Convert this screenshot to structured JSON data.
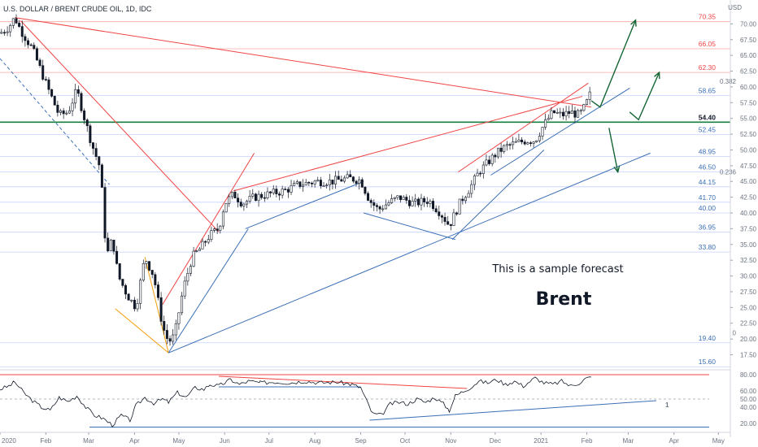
{
  "header": {
    "symbol_title": "U.S. DOLLAR / BRENT CRUDE OIL, 1D, IDC",
    "currency": "USD"
  },
  "chart_data": [
    {
      "type": "line",
      "y_axis_side": "right",
      "ylim": [
        15.5,
        72.5
      ],
      "y_ticks": [
        17.5,
        20.0,
        22.5,
        25.0,
        27.5,
        30.0,
        32.5,
        35.0,
        37.5,
        40.0,
        42.5,
        45.0,
        47.5,
        50.0,
        52.5,
        55.0,
        57.5,
        60.0,
        62.5,
        65.0,
        67.5,
        70.0
      ],
      "price_levels": [
        {
          "value": 70.35,
          "label": "70.35",
          "color": "#ef4444"
        },
        {
          "value": 66.05,
          "label": "66.05",
          "color": "#ef4444"
        },
        {
          "value": 62.3,
          "label": "62.30",
          "color": "#ef4444"
        },
        {
          "value": 58.65,
          "label": "58.65",
          "color": "#3b6fb6"
        },
        {
          "value": 54.4,
          "label": "54.40",
          "color": "#111827"
        },
        {
          "value": 52.45,
          "label": "52.45",
          "color": "#3b6fb6"
        },
        {
          "value": 48.95,
          "label": "48.95",
          "color": "#3b6fb6"
        },
        {
          "value": 46.5,
          "label": "46.50",
          "color": "#3b6fb6"
        },
        {
          "value": 44.15,
          "label": "44.15",
          "color": "#3b6fb6"
        },
        {
          "value": 41.7,
          "label": "41.70",
          "color": "#3b6fb6"
        },
        {
          "value": 40.0,
          "label": "40.00",
          "color": "#3b6fb6"
        },
        {
          "value": 36.95,
          "label": "36.95",
          "color": "#3b6fb6"
        },
        {
          "value": 33.8,
          "label": "33.80",
          "color": "#3b6fb6"
        },
        {
          "value": 19.4,
          "label": "19.40",
          "color": "#3b6fb6"
        },
        {
          "value": 15.6,
          "label": "15.60",
          "color": "#3b6fb6"
        }
      ],
      "fib_labels": [
        {
          "value": 60.9,
          "label": "0.382"
        },
        {
          "value": 46.5,
          "label": "0.236"
        },
        {
          "value": 21.0,
          "label": "0"
        }
      ],
      "x_ticks": [
        {
          "day": 0,
          "label": "2020"
        },
        {
          "day": 31,
          "label": "Feb"
        },
        {
          "day": 60,
          "label": "Mar"
        },
        {
          "day": 91,
          "label": "Apr"
        },
        {
          "day": 121,
          "label": "May"
        },
        {
          "day": 152,
          "label": "Jun"
        },
        {
          "day": 182,
          "label": "Jul"
        },
        {
          "day": 213,
          "label": "Aug"
        },
        {
          "day": 244,
          "label": "Sep"
        },
        {
          "day": 274,
          "label": "Oct"
        },
        {
          "day": 305,
          "label": "Nov"
        },
        {
          "day": 335,
          "label": "Dec"
        },
        {
          "day": 366,
          "label": "2021"
        },
        {
          "day": 397,
          "label": "Feb"
        },
        {
          "day": 425,
          "label": "Mar"
        },
        {
          "day": 456,
          "label": "Apr"
        },
        {
          "day": 486,
          "label": "May"
        }
      ],
      "x_range_days": [
        0,
        493
      ],
      "price_path": [
        [
          0,
          68.5
        ],
        [
          6,
          69.5
        ],
        [
          10,
          71.0
        ],
        [
          14,
          69.0
        ],
        [
          22,
          66.0
        ],
        [
          32,
          60.0
        ],
        [
          40,
          55.5
        ],
        [
          46,
          56.0
        ],
        [
          52,
          59.5
        ],
        [
          56,
          56.0
        ],
        [
          62,
          51.0
        ],
        [
          68,
          47.0
        ],
        [
          72,
          33.0
        ],
        [
          76,
          36.0
        ],
        [
          80,
          30.0
        ],
        [
          86,
          27.0
        ],
        [
          92,
          25.0
        ],
        [
          98,
          33.0
        ],
        [
          104,
          30.0
        ],
        [
          110,
          22.0
        ],
        [
          114,
          19.5
        ],
        [
          118,
          20.5
        ],
        [
          124,
          28.0
        ],
        [
          130,
          33.0
        ],
        [
          136,
          34.5
        ],
        [
          142,
          36.5
        ],
        [
          148,
          37.5
        ],
        [
          152,
          41.5
        ],
        [
          158,
          43.0
        ],
        [
          164,
          41.5
        ],
        [
          172,
          42.5
        ],
        [
          182,
          43.0
        ],
        [
          192,
          43.5
        ],
        [
          202,
          44.5
        ],
        [
          214,
          45.0
        ],
        [
          224,
          45.0
        ],
        [
          236,
          45.5
        ],
        [
          244,
          45.2
        ],
        [
          250,
          42.0
        ],
        [
          256,
          40.5
        ],
        [
          262,
          41.5
        ],
        [
          270,
          42.5
        ],
        [
          280,
          41.5
        ],
        [
          290,
          42.0
        ],
        [
          298,
          40.0
        ],
        [
          304,
          38.0
        ],
        [
          308,
          40.0
        ],
        [
          312,
          42.0
        ],
        [
          318,
          44.0
        ],
        [
          324,
          46.5
        ],
        [
          330,
          48.0
        ],
        [
          336,
          49.5
        ],
        [
          342,
          50.5
        ],
        [
          348,
          51.0
        ],
        [
          356,
          51.5
        ],
        [
          362,
          51.5
        ],
        [
          368,
          54.0
        ],
        [
          374,
          56.0
        ],
        [
          380,
          55.5
        ],
        [
          386,
          56.0
        ],
        [
          392,
          55.5
        ],
        [
          396,
          57.0
        ],
        [
          400,
          59.3
        ]
      ],
      "trendlines": [
        {
          "color": "#ef4444",
          "points": [
            [
              10,
              71.0
            ],
            [
              400,
              56.8
            ]
          ]
        },
        {
          "color": "#ef4444",
          "points": [
            [
              14,
              70.5
            ],
            [
              148,
              37.0
            ]
          ]
        },
        {
          "color": "#ef4444",
          "points": [
            [
              110,
              25.5
            ],
            [
              172,
              49.5
            ]
          ]
        },
        {
          "color": "#ef4444",
          "points": [
            [
              158,
              43.5
            ],
            [
              394,
              58.5
            ]
          ]
        },
        {
          "color": "#ef4444",
          "points": [
            [
              310,
              46.5
            ],
            [
              398,
              60.6
            ]
          ]
        },
        {
          "color": "#f59e0b",
          "points": [
            [
              78,
              24.8
            ],
            [
              114,
              17.8
            ]
          ]
        },
        {
          "color": "#f59e0b",
          "points": [
            [
              98,
              33.0
            ],
            [
              114,
              17.8
            ]
          ]
        },
        {
          "color": "#3b6fb6",
          "points": [
            [
              114,
              17.8
            ],
            [
              168,
              37.5
            ]
          ]
        },
        {
          "color": "#3b6fb6",
          "points": [
            [
              114,
              17.8
            ],
            [
              440,
              49.5
            ]
          ]
        },
        {
          "color": "#3b6fb6",
          "points": [
            [
              166,
              37.5
            ],
            [
              246,
              45.0
            ]
          ]
        },
        {
          "color": "#3b6fb6",
          "points": [
            [
              246,
              40.0
            ],
            [
              308,
              35.8
            ]
          ]
        },
        {
          "color": "#3b6fb6",
          "points": [
            [
              306,
              35.8
            ],
            [
              368,
              50.0
            ]
          ]
        },
        {
          "color": "#3b6fb6",
          "points": [
            [
              332,
              46.0
            ],
            [
              426,
              59.8
            ]
          ]
        }
      ],
      "dashed_trendline": {
        "color": "#3b6fb6",
        "points": [
          [
            0,
            64.5
          ],
          [
            74,
            44.5
          ]
        ]
      },
      "support_line": {
        "value": 54.4,
        "color": "#15803d",
        "label": "54.40"
      },
      "forecast_arrows": [
        {
          "color": "#166534",
          "points": [
            [
              400,
              57.8
            ],
            [
              406,
              56.8
            ],
            [
              430,
              70.6
            ]
          ]
        },
        {
          "color": "#166534",
          "points": [
            [
              426,
              56.0
            ],
            [
              432,
              54.8
            ],
            [
              446,
              62.3
            ]
          ]
        },
        {
          "color": "#166534",
          "points": [
            [
              412,
              53.5
            ],
            [
              418,
              46.5
            ]
          ]
        }
      ],
      "annotations": [
        {
          "text": "This is a sample forecast"
        },
        {
          "text": "Brent"
        }
      ]
    },
    {
      "type": "line",
      "y_axis_side": "right",
      "ylim": [
        13,
        83
      ],
      "y_ticks": [
        {
          "value": 80.0,
          "label": "80.00"
        },
        {
          "value": 60.0,
          "label": "60.00"
        },
        {
          "value": 50.0,
          "label": "50.00"
        },
        {
          "value": 40.0,
          "label": "40.00"
        },
        {
          "value": 20.0,
          "label": "20.00"
        }
      ],
      "levels": [
        {
          "value": 80,
          "color": "#ef4444"
        },
        {
          "value": 50,
          "color": "#9ca3af"
        },
        {
          "value": 15.5,
          "color": "#3b6fb6"
        }
      ],
      "oscillator_path": [
        [
          0,
          62
        ],
        [
          6,
          66
        ],
        [
          10,
          71
        ],
        [
          16,
          58
        ],
        [
          22,
          48
        ],
        [
          28,
          40
        ],
        [
          34,
          36
        ],
        [
          40,
          52
        ],
        [
          46,
          47
        ],
        [
          52,
          54
        ],
        [
          58,
          40
        ],
        [
          64,
          30
        ],
        [
          70,
          26
        ],
        [
          76,
          18
        ],
        [
          82,
          30
        ],
        [
          88,
          24
        ],
        [
          92,
          42
        ],
        [
          98,
          52
        ],
        [
          104,
          45
        ],
        [
          110,
          50
        ],
        [
          114,
          46
        ],
        [
          120,
          58
        ],
        [
          126,
          52
        ],
        [
          132,
          64
        ],
        [
          138,
          62
        ],
        [
          142,
          68
        ],
        [
          148,
          66
        ],
        [
          152,
          70
        ],
        [
          156,
          74
        ],
        [
          162,
          68
        ],
        [
          168,
          72
        ],
        [
          176,
          70
        ],
        [
          186,
          71
        ],
        [
          196,
          70
        ],
        [
          206,
          72
        ],
        [
          216,
          70
        ],
        [
          228,
          71
        ],
        [
          238,
          68
        ],
        [
          244,
          64
        ],
        [
          248,
          48
        ],
        [
          252,
          32
        ],
        [
          258,
          30
        ],
        [
          264,
          44
        ],
        [
          270,
          46
        ],
        [
          276,
          44
        ],
        [
          282,
          50
        ],
        [
          288,
          46
        ],
        [
          294,
          52
        ],
        [
          300,
          44
        ],
        [
          304,
          36
        ],
        [
          308,
          54
        ],
        [
          312,
          58
        ],
        [
          318,
          64
        ],
        [
          324,
          72
        ],
        [
          330,
          70
        ],
        [
          336,
          74
        ],
        [
          342,
          68
        ],
        [
          348,
          72
        ],
        [
          354,
          66
        ],
        [
          362,
          76
        ],
        [
          368,
          70
        ],
        [
          374,
          68
        ],
        [
          380,
          72
        ],
        [
          386,
          66
        ],
        [
          392,
          70
        ],
        [
          396,
          75
        ],
        [
          400,
          77
        ]
      ],
      "trendlines": [
        {
          "color": "#ef4444",
          "points": [
            [
              148,
              78
            ],
            [
              316,
              63
            ]
          ]
        },
        {
          "color": "#3b6fb6",
          "points": [
            [
              148,
              65
            ],
            [
              244,
              65
            ]
          ]
        },
        {
          "color": "#3b6fb6",
          "points": [
            [
              250,
              24
            ],
            [
              444,
              48
            ]
          ]
        }
      ],
      "annotations": [
        {
          "text": "1"
        }
      ]
    }
  ]
}
